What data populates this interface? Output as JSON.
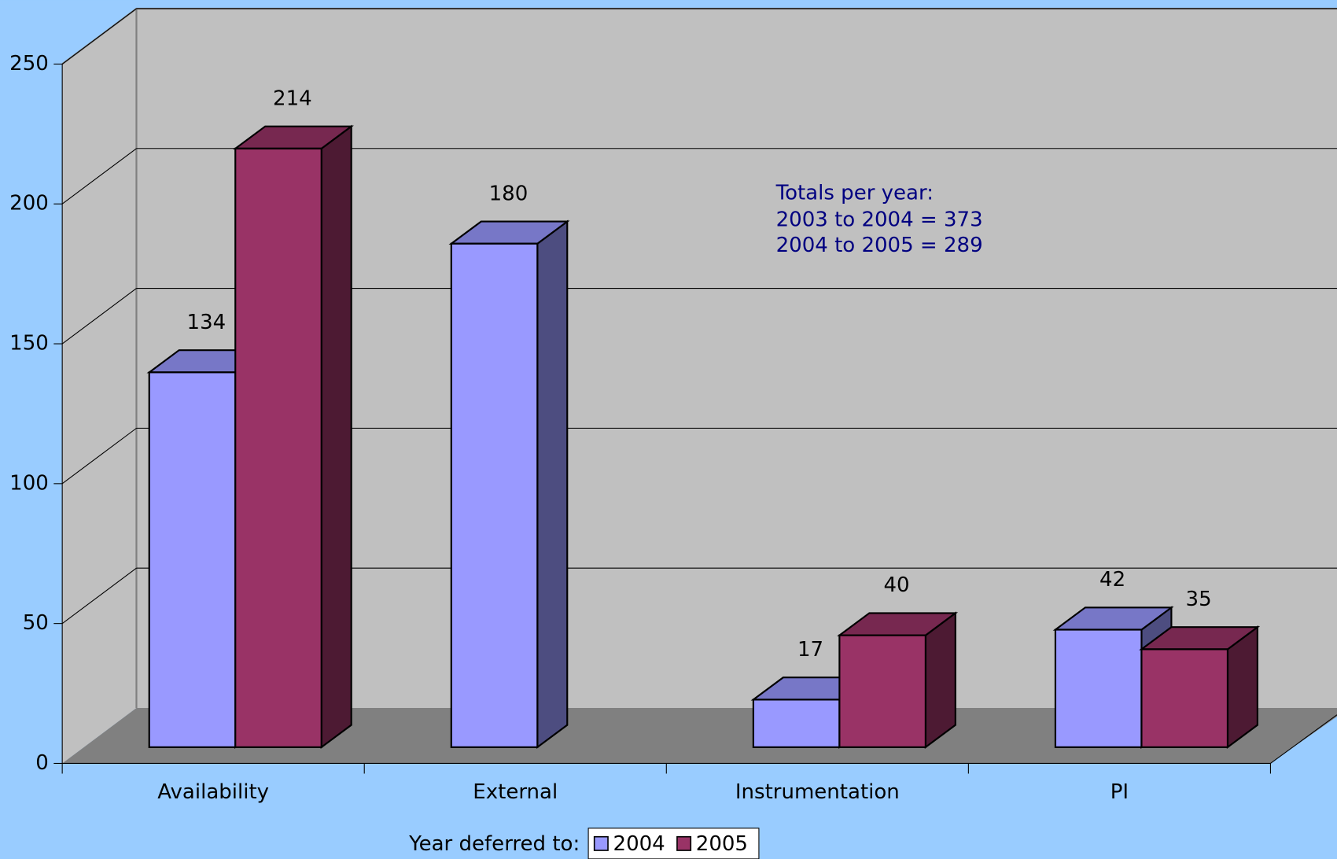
{
  "chart_data": {
    "type": "bar3d",
    "categories": [
      "Availability",
      "External",
      "Instrumentation",
      "PI"
    ],
    "series": [
      {
        "name": "2004",
        "color": "#9999ff",
        "values": [
          134,
          180,
          17,
          42
        ]
      },
      {
        "name": "2005",
        "color": "#993366",
        "values": [
          214,
          null,
          40,
          35
        ]
      }
    ],
    "ylim": [
      0,
      250
    ],
    "yticks": [
      0,
      50,
      100,
      150,
      200,
      250
    ],
    "grid": true,
    "annotation": [
      "Totals per year:",
      "2003 to 2004 = 373",
      "2004 to 2005 = 289"
    ],
    "legend_title": "Year deferred to:",
    "legend": "bottom"
  }
}
